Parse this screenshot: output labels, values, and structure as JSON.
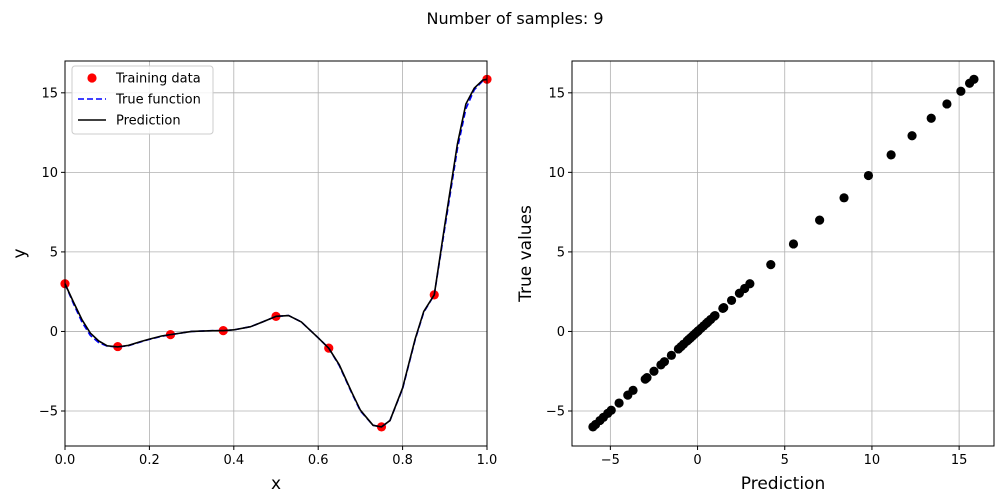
{
  "figure": {
    "suptitle": "Number of samples: 9"
  },
  "chart_data": [
    {
      "type": "line",
      "xlabel": "x",
      "ylabel": "y",
      "xlim": [
        0.0,
        1.0
      ],
      "ylim": [
        -7.2,
        17.0
      ],
      "xticks": [
        0.0,
        0.2,
        0.4,
        0.6,
        0.8,
        1.0
      ],
      "xtick_labels": [
        "0.0",
        "0.2",
        "0.4",
        "0.6",
        "0.8",
        "1.0"
      ],
      "yticks": [
        -5,
        0,
        5,
        10,
        15
      ],
      "ytick_labels": [
        "−5",
        "0",
        "5",
        "10",
        "15"
      ],
      "grid": true,
      "legend_position": "top-left",
      "series": [
        {
          "name": "Training data",
          "style": "points",
          "color": "#ff0000",
          "x": [
            0.0,
            0.125,
            0.25,
            0.375,
            0.5,
            0.625,
            0.75,
            0.875,
            1.0
          ],
          "y": [
            3.0,
            -0.95,
            -0.2,
            0.05,
            0.95,
            -1.05,
            -6.0,
            2.3,
            15.85
          ]
        },
        {
          "name": "True function",
          "style": "dashed",
          "color": "#0000ff",
          "x": [
            0.0,
            0.02,
            0.04,
            0.06,
            0.08,
            0.1,
            0.125,
            0.15,
            0.18,
            0.2,
            0.23,
            0.25,
            0.3,
            0.35,
            0.375,
            0.4,
            0.44,
            0.47,
            0.5,
            0.53,
            0.56,
            0.6,
            0.625,
            0.65,
            0.68,
            0.7,
            0.73,
            0.75,
            0.77,
            0.8,
            0.83,
            0.85,
            0.875,
            0.9,
            0.93,
            0.95,
            0.97,
            0.99,
            1.0
          ],
          "y": [
            3.0,
            1.75,
            0.6,
            -0.25,
            -0.7,
            -0.92,
            -0.97,
            -0.9,
            -0.65,
            -0.5,
            -0.3,
            -0.2,
            0.0,
            0.05,
            0.05,
            0.1,
            0.3,
            0.62,
            0.95,
            1.0,
            0.6,
            -0.4,
            -1.05,
            -2.15,
            -3.9,
            -5.0,
            -5.9,
            -6.0,
            -5.6,
            -3.6,
            -0.5,
            1.2,
            2.3,
            6.5,
            11.5,
            14.0,
            15.2,
            15.75,
            15.85
          ]
        },
        {
          "name": "Prediction",
          "style": "solid",
          "color": "#000000",
          "x": [
            0.0,
            0.02,
            0.04,
            0.06,
            0.08,
            0.1,
            0.125,
            0.15,
            0.18,
            0.2,
            0.23,
            0.25,
            0.3,
            0.35,
            0.375,
            0.4,
            0.44,
            0.47,
            0.5,
            0.53,
            0.56,
            0.6,
            0.625,
            0.65,
            0.68,
            0.7,
            0.73,
            0.75,
            0.77,
            0.8,
            0.83,
            0.85,
            0.875,
            0.9,
            0.93,
            0.95,
            0.97,
            0.99,
            1.0
          ],
          "y": [
            3.0,
            1.85,
            0.75,
            -0.1,
            -0.6,
            -0.9,
            -0.97,
            -0.88,
            -0.63,
            -0.48,
            -0.28,
            -0.2,
            0.0,
            0.05,
            0.05,
            0.1,
            0.3,
            0.62,
            0.95,
            1.0,
            0.6,
            -0.4,
            -1.05,
            -2.1,
            -3.85,
            -4.95,
            -5.9,
            -6.0,
            -5.6,
            -3.55,
            -0.45,
            1.25,
            2.3,
            6.7,
            11.8,
            14.3,
            15.3,
            15.8,
            15.85
          ]
        }
      ]
    },
    {
      "type": "scatter",
      "xlabel": "Prediction",
      "ylabel": "True values",
      "xlim": [
        -7.2,
        17.0
      ],
      "ylim": [
        -7.2,
        17.0
      ],
      "xticks": [
        -5,
        0,
        5,
        10,
        15
      ],
      "xtick_labels": [
        "−5",
        "0",
        "5",
        "10",
        "15"
      ],
      "yticks": [
        -5,
        0,
        5,
        10,
        15
      ],
      "ytick_labels": [
        "−5",
        "0",
        "5",
        "10",
        "15"
      ],
      "grid": true,
      "series": [
        {
          "style": "points",
          "color": "#000000",
          "x": [
            -6.0,
            -5.85,
            -5.6,
            -5.4,
            -5.15,
            -4.95,
            -4.5,
            -4.0,
            -3.7,
            -3.0,
            -2.9,
            -2.5,
            -2.1,
            -1.9,
            -1.5,
            -1.1,
            -0.95,
            -0.8,
            -0.6,
            -0.5,
            -0.4,
            -0.3,
            -0.2,
            -0.1,
            0.0,
            0.05,
            0.2,
            0.35,
            0.5,
            0.6,
            0.75,
            0.95,
            1.0,
            1.45,
            1.5,
            1.95,
            2.4,
            2.7,
            3.0,
            4.2,
            5.5,
            7.0,
            8.4,
            9.8,
            11.1,
            12.3,
            13.4,
            14.3,
            15.1,
            15.6,
            15.85
          ],
          "y": [
            -6.0,
            -5.85,
            -5.6,
            -5.4,
            -5.15,
            -4.95,
            -4.5,
            -4.0,
            -3.7,
            -3.0,
            -2.9,
            -2.5,
            -2.1,
            -1.9,
            -1.5,
            -1.1,
            -0.95,
            -0.8,
            -0.6,
            -0.5,
            -0.4,
            -0.3,
            -0.2,
            -0.1,
            0.0,
            0.05,
            0.2,
            0.35,
            0.5,
            0.6,
            0.75,
            0.95,
            1.0,
            1.45,
            1.5,
            1.95,
            2.4,
            2.7,
            3.0,
            4.2,
            5.5,
            7.0,
            8.4,
            9.8,
            11.1,
            12.3,
            13.4,
            14.3,
            15.1,
            15.6,
            15.85
          ]
        }
      ]
    }
  ]
}
